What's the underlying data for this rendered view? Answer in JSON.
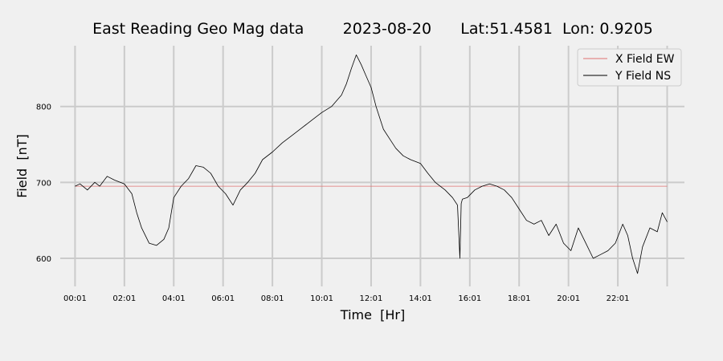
{
  "chart_data": {
    "type": "line",
    "title": "East Reading Geo Mag data        2023-08-20      Lat:51.4581  Lon: 0.9205",
    "xlabel": "Time  [Hr]",
    "ylabel": "Field  [nT]",
    "x_ticks": [
      "00:01",
      "02:01",
      "04:01",
      "06:01",
      "08:01",
      "10:01",
      "12:01",
      "14:01",
      "16:01",
      "18:01",
      "20:01",
      "22:01"
    ],
    "x_unit": "hours",
    "xlim": [
      -0.6,
      24.7
    ],
    "y_ticks": [
      600,
      700,
      800
    ],
    "ylim": [
      563,
      880
    ],
    "grid": true,
    "legend_position": "top-right",
    "series": [
      {
        "name": "X Field EW",
        "color": "#e07070",
        "x": [
          0,
          24
        ],
        "values": [
          695,
          695
        ]
      },
      {
        "name": "Y Field NS",
        "color": "#000000",
        "x": [
          0,
          0.2,
          0.5,
          0.8,
          1.0,
          1.3,
          1.6,
          2.0,
          2.3,
          2.5,
          2.7,
          3.0,
          3.3,
          3.6,
          3.8,
          4.0,
          4.3,
          4.6,
          4.9,
          5.2,
          5.5,
          5.8,
          6.1,
          6.4,
          6.7,
          7.0,
          7.3,
          7.6,
          8.0,
          8.4,
          8.8,
          9.2,
          9.6,
          10.0,
          10.4,
          10.8,
          11.0,
          11.2,
          11.4,
          11.6,
          11.8,
          12.0,
          12.2,
          12.5,
          12.8,
          13.0,
          13.3,
          13.6,
          14.0,
          14.3,
          14.6,
          15.0,
          15.3,
          15.5,
          15.6,
          15.65,
          15.7,
          15.9,
          16.2,
          16.5,
          16.8,
          17.1,
          17.4,
          17.7,
          18.0,
          18.3,
          18.6,
          18.9,
          19.2,
          19.5,
          19.8,
          20.1,
          20.4,
          20.7,
          21.0,
          21.3,
          21.6,
          21.9,
          22.2,
          22.4,
          22.6,
          22.8,
          23.0,
          23.3,
          23.6,
          23.8,
          24.0
        ],
        "values": [
          695,
          698,
          690,
          700,
          695,
          708,
          703,
          698,
          685,
          660,
          640,
          620,
          617,
          625,
          640,
          680,
          695,
          705,
          722,
          720,
          712,
          695,
          685,
          670,
          690,
          700,
          712,
          730,
          740,
          752,
          762,
          772,
          782,
          792,
          800,
          815,
          830,
          850,
          868,
          855,
          840,
          825,
          800,
          770,
          755,
          745,
          735,
          730,
          725,
          712,
          700,
          690,
          680,
          670,
          600,
          672,
          678,
          680,
          690,
          695,
          698,
          695,
          690,
          680,
          665,
          650,
          645,
          650,
          630,
          645,
          620,
          610,
          640,
          620,
          600,
          605,
          610,
          620,
          645,
          630,
          600,
          580,
          615,
          640,
          635,
          660,
          648
        ]
      }
    ]
  }
}
